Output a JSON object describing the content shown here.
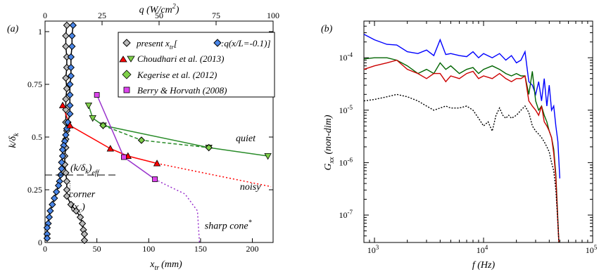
{
  "chart_data": [
    {
      "type": "line",
      "panel_label": "(a)",
      "xlabel": "x",
      "xlabel_sub": "tr",
      "xlabel_units": "(mm)",
      "xlim": [
        0,
        220
      ],
      "xticks": [
        0,
        50,
        100,
        150,
        200
      ],
      "ylabel": "k/δ",
      "ylabel_sub": "k",
      "ylim": [
        0,
        1.05
      ],
      "yticks": [
        0,
        0.25,
        0.5,
        0.75,
        1
      ],
      "x2label": "q (W/cm",
      "x2label_sup": "2",
      "x2label_tail": ")",
      "x2lim": [
        0,
        100
      ],
      "x2ticks": [
        0,
        25,
        50,
        75,
        100
      ],
      "legend": {
        "entry1_main": "present x",
        "entry1_sub": "tr",
        "entry1_bracket": "[",
        "entry1_extra": ":q(x/L=-0.1)]",
        "entry2": "Choudhari et al. (2013)",
        "entry3": "Kegerise et al. (2012)",
        "entry4": "Berry & Horvath (2008)"
      },
      "annotations": {
        "keff_main": "(k/δ",
        "keff_sub": "k",
        "keff_tail": ")",
        "keff_sub2": "eff",
        "keff_value": 0.32,
        "corner": "corner",
        "corner_sym": "(x",
        "corner_sym_sub": "c",
        "corner_sym_tail": ")",
        "quiet": "quiet",
        "noisy": "noisy",
        "sharp_cone": "sharp cone",
        "sharp_cone_sup": "*"
      },
      "colors": {
        "present_xtr": "#000000",
        "q_heatflux": "#4a86e8",
        "choudhari": "#ff0000",
        "choudhari_quiet": "#00aa00",
        "kegerise": "#2a8c2a",
        "berry": "#9932cc"
      },
      "series": [
        {
          "name": "present x_tr",
          "marker": "diamond",
          "points": [
            [
              21,
              1.03
            ],
            [
              20,
              0.98
            ],
            [
              20,
              0.93
            ],
            [
              21,
              0.88
            ],
            [
              21,
              0.83
            ],
            [
              20,
              0.78
            ],
            [
              21,
              0.73
            ],
            [
              20,
              0.68
            ],
            [
              20,
              0.63
            ],
            [
              20,
              0.57
            ],
            [
              21,
              0.53
            ],
            [
              20,
              0.49
            ],
            [
              20,
              0.45
            ],
            [
              19,
              0.41
            ],
            [
              19,
              0.37
            ],
            [
              20,
              0.33
            ],
            [
              21,
              0.29
            ],
            [
              21,
              0.25
            ],
            [
              21,
              0.22
            ],
            [
              25,
              0.18
            ],
            [
              30,
              0.15
            ],
            [
              34,
              0.12
            ],
            [
              36,
              0.09
            ],
            [
              37,
              0.06
            ],
            [
              38,
              0.04
            ],
            [
              38,
              0.01
            ]
          ]
        },
        {
          "name": "q(x/L=-0.1)",
          "marker": "diamond",
          "points": [
            [
              27,
              1.03
            ],
            [
              26,
              0.98
            ],
            [
              26,
              0.93
            ],
            [
              25,
              0.88
            ],
            [
              25,
              0.83
            ],
            [
              25,
              0.79
            ],
            [
              24,
              0.75
            ],
            [
              24,
              0.7
            ],
            [
              24,
              0.65
            ],
            [
              24,
              0.61
            ],
            [
              22,
              0.57
            ],
            [
              21,
              0.54
            ],
            [
              20,
              0.51
            ],
            [
              19,
              0.48
            ],
            [
              18,
              0.46
            ],
            [
              17,
              0.44
            ],
            [
              17,
              0.41
            ],
            [
              16,
              0.38
            ],
            [
              16,
              0.35
            ],
            [
              15,
              0.32
            ],
            [
              14,
              0.29
            ],
            [
              13,
              0.27
            ],
            [
              11,
              0.24
            ],
            [
              9,
              0.21
            ],
            [
              7,
              0.18
            ],
            [
              5,
              0.15
            ],
            [
              4,
              0.12
            ],
            [
              3,
              0.09
            ],
            [
              2,
              0.07
            ],
            [
              2,
              0.04
            ],
            [
              2,
              0.02
            ]
          ]
        },
        {
          "name": "Choudhari et al. (2013) noisy",
          "marker": "triangle-up",
          "points": [
            [
              17,
              0.65
            ],
            [
              24,
              0.555
            ],
            [
              63,
              0.445
            ],
            [
              80,
              0.41
            ],
            [
              108,
              0.375
            ]
          ],
          "extrapolation": [
            [
              108,
              0.375
            ],
            [
              218,
              0.265
            ]
          ]
        },
        {
          "name": "Choudhari et al. (2013) quiet",
          "marker": "triangle-down",
          "points": [
            [
              42,
              0.65
            ],
            [
              46,
              0.59
            ],
            [
              56,
              0.555
            ],
            [
              158,
              0.45
            ],
            [
              215,
              0.41
            ]
          ]
        },
        {
          "name": "Kegerise et al. (2012)",
          "marker": "diamond",
          "points": [
            [
              56,
              0.555
            ],
            [
              93,
              0.485
            ],
            [
              158,
              0.45
            ]
          ]
        },
        {
          "name": "Berry & Horvath (2008)",
          "marker": "square",
          "points": [
            [
              50,
              0.7
            ],
            [
              76,
              0.405
            ],
            [
              106,
              0.3
            ]
          ],
          "extrapolation": [
            [
              106,
              0.3
            ],
            [
              118,
              0.27
            ],
            [
              135,
              0.23
            ],
            [
              147,
              0.15
            ],
            [
              149,
              0.0
            ]
          ]
        }
      ]
    },
    {
      "type": "line",
      "panel_label": "(b)",
      "xlabel": "f (Hz)",
      "xscale": "log",
      "xlim": [
        800,
        100000
      ],
      "xtick_labels": [
        "10",
        "10",
        "10"
      ],
      "xtick_exponents": [
        "3",
        "4",
        "5"
      ],
      "ylabel": "G",
      "ylabel_sub": "xx",
      "ylabel_tail": "(non-dim)",
      "yscale": "log",
      "ylim": [
        3e-08,
        0.0005
      ],
      "ytick_labels": [
        "10",
        "10",
        "10",
        "10"
      ],
      "ytick_exponents": [
        "-7",
        "-6",
        "-5",
        "-4"
      ],
      "colors": {
        "blue": "#0000ff",
        "green": "#006400",
        "red": "#cc0000",
        "black": "#000000"
      },
      "series": [
        {
          "color": "blue",
          "style": "solid",
          "points": [
            [
              800,
              0.00028
            ],
            [
              1000,
              0.00022
            ],
            [
              1300,
              0.00018
            ],
            [
              1600,
              0.000175
            ],
            [
              2000,
              0.00013
            ],
            [
              2500,
              0.00012
            ],
            [
              3000,
              0.00014
            ],
            [
              3500,
              0.00011
            ],
            [
              4000,
              0.00022
            ],
            [
              4500,
              0.000115
            ],
            [
              5000,
              0.00012
            ],
            [
              6000,
              0.00011
            ],
            [
              7000,
              0.000105
            ],
            [
              8000,
              0.00013
            ],
            [
              9000,
              0.0001
            ],
            [
              10000,
              0.00012
            ],
            [
              12000,
              0.0001
            ],
            [
              14000,
              0.00012
            ],
            [
              16000,
              9e-05
            ],
            [
              18000,
              0.00011
            ],
            [
              20000,
              8e-05
            ],
            [
              22000,
              9e-05
            ],
            [
              24000,
              0.00013
            ],
            [
              26000,
              3.5e-05
            ],
            [
              28000,
              3e-05
            ],
            [
              30000,
              2e-05
            ],
            [
              32000,
              3.5e-05
            ],
            [
              34000,
              1.5e-05
            ],
            [
              36000,
              4e-05
            ],
            [
              38000,
              1.2e-05
            ],
            [
              40000,
              3e-05
            ],
            [
              42000,
              1e-05
            ],
            [
              44000,
              1.2e-05
            ],
            [
              46000,
              5e-06
            ],
            [
              48000,
              2.5e-06
            ],
            [
              50000,
              5e-07
            ]
          ]
        },
        {
          "color": "green",
          "style": "solid",
          "points": [
            [
              800,
              9.5e-05
            ],
            [
              1000,
              0.0001
            ],
            [
              1300,
              0.0001
            ],
            [
              1600,
              9e-05
            ],
            [
              2000,
              7e-05
            ],
            [
              2500,
              5e-05
            ],
            [
              3000,
              6e-05
            ],
            [
              3500,
              5e-05
            ],
            [
              4000,
              8e-05
            ],
            [
              4500,
              6e-05
            ],
            [
              5000,
              7e-05
            ],
            [
              6000,
              5e-05
            ],
            [
              7000,
              6e-05
            ],
            [
              8000,
              6.5e-05
            ],
            [
              9000,
              5e-05
            ],
            [
              10000,
              6e-05
            ],
            [
              12000,
              7e-05
            ],
            [
              14000,
              6e-05
            ],
            [
              16000,
              5e-05
            ],
            [
              18000,
              4.5e-05
            ],
            [
              20000,
              5e-05
            ],
            [
              22000,
              4.5e-05
            ],
            [
              24000,
              4.5e-05
            ],
            [
              26000,
              2e-05
            ],
            [
              28000,
              5.5e-05
            ],
            [
              30000,
              1.5e-05
            ],
            [
              32000,
              1e-05
            ],
            [
              34000,
              1.2e-05
            ],
            [
              36000,
              8e-06
            ],
            [
              38000,
              6e-06
            ],
            [
              40000,
              4e-06
            ],
            [
              42000,
              3e-06
            ],
            [
              44000,
              1.8e-06
            ],
            [
              46000,
              6e-07
            ],
            [
              48000,
              8e-08
            ],
            [
              49000,
              3e-08
            ]
          ]
        },
        {
          "color": "red",
          "style": "solid",
          "points": [
            [
              800,
              6e-05
            ],
            [
              1000,
              7e-05
            ],
            [
              1300,
              8e-05
            ],
            [
              1600,
              9e-05
            ],
            [
              2000,
              6e-05
            ],
            [
              2500,
              5e-05
            ],
            [
              3000,
              4e-05
            ],
            [
              3500,
              5e-05
            ],
            [
              4000,
              5e-05
            ],
            [
              4500,
              3.5e-05
            ],
            [
              5000,
              4.5e-05
            ],
            [
              6000,
              4e-05
            ],
            [
              7000,
              5e-05
            ],
            [
              8000,
              5.5e-05
            ],
            [
              9000,
              4e-05
            ],
            [
              10000,
              4.5e-05
            ],
            [
              12000,
              4e-05
            ],
            [
              14000,
              5e-05
            ],
            [
              16000,
              4e-05
            ],
            [
              18000,
              3.5e-05
            ],
            [
              20000,
              4e-05
            ],
            [
              22000,
              4e-05
            ],
            [
              24000,
              4.5e-05
            ],
            [
              26000,
              1.5e-05
            ],
            [
              28000,
              1.2e-05
            ],
            [
              30000,
              1e-05
            ],
            [
              32000,
              8e-06
            ],
            [
              34000,
              1.2e-05
            ],
            [
              36000,
              6e-06
            ],
            [
              38000,
              5e-06
            ],
            [
              40000,
              4e-06
            ],
            [
              42000,
              3e-06
            ],
            [
              44000,
              1.5e-06
            ],
            [
              46000,
              5e-07
            ],
            [
              48000,
              7e-08
            ],
            [
              49000,
              3e-08
            ]
          ]
        },
        {
          "color": "black",
          "style": "dotted",
          "points": [
            [
              800,
              1.5e-05
            ],
            [
              1000,
              1.6e-05
            ],
            [
              1300,
              1.8e-05
            ],
            [
              1600,
              2e-05
            ],
            [
              2000,
              1.8e-05
            ],
            [
              2500,
              1.5e-05
            ],
            [
              3000,
              1.2e-05
            ],
            [
              3500,
              1e-05
            ],
            [
              4000,
              1.1e-05
            ],
            [
              4500,
              1.2e-05
            ],
            [
              5000,
              1.1e-05
            ],
            [
              6000,
              1.1e-05
            ],
            [
              7000,
              1.2e-05
            ],
            [
              8000,
              1e-05
            ],
            [
              9000,
              7e-06
            ],
            [
              10000,
              5e-06
            ],
            [
              11000,
              6e-06
            ],
            [
              12000,
              4e-06
            ],
            [
              13000,
              8e-06
            ],
            [
              14000,
              1.1e-05
            ],
            [
              15000,
              8e-06
            ],
            [
              16000,
              7e-06
            ],
            [
              17000,
              8e-06
            ],
            [
              18000,
              7e-06
            ],
            [
              20000,
              8e-06
            ],
            [
              22000,
              1e-05
            ],
            [
              24000,
              1.2e-05
            ],
            [
              26000,
              9e-06
            ],
            [
              28000,
              5e-06
            ],
            [
              30000,
              4e-06
            ],
            [
              32000,
              3.5e-06
            ],
            [
              34000,
              3e-06
            ],
            [
              36000,
              2.5e-06
            ],
            [
              38000,
              2e-06
            ],
            [
              40000,
              1.6e-06
            ],
            [
              42000,
              1e-06
            ],
            [
              44000,
              7e-07
            ],
            [
              46000,
              3e-07
            ],
            [
              48000,
              7e-08
            ],
            [
              49000,
              3e-08
            ]
          ]
        }
      ]
    }
  ]
}
